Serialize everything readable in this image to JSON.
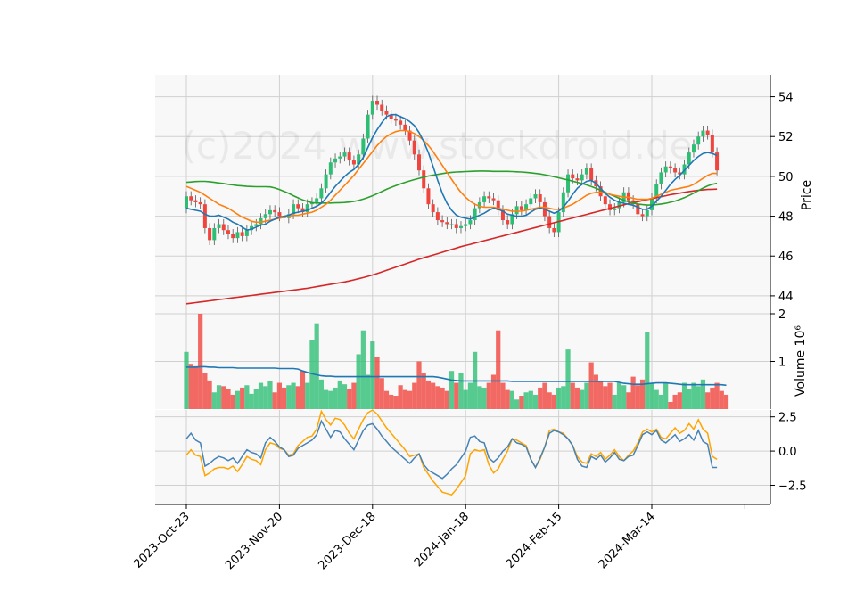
{
  "watermark": "(c)2024 www.stockdroid.de",
  "colors": {
    "up": "#2dbe74",
    "down": "#f0453f",
    "ma_short": "#1f77b4",
    "ma_mid": "#ff7f0e",
    "ma_long": "#2ca02c",
    "ma_200": "#d62728",
    "volume_avg": "#1f77b4",
    "osc_fast": "#4682b4",
    "osc_slow": "#ffa500"
  },
  "chart_data": {
    "type": "candlestick",
    "x_tick_labels": [
      "2023-Oct-23",
      "2023-Nov-20",
      "2023-Dec-18",
      "2024-Jan-18",
      "2024-Feb-15",
      "2024-Mar-14"
    ],
    "x_tick_index": [
      0,
      20,
      40,
      60,
      80,
      100
    ],
    "price_panel": {
      "ylabel": "Price",
      "ylim": [
        43.1,
        55.1
      ],
      "yticks": [
        44,
        46,
        48,
        50,
        52,
        54
      ],
      "close": [
        49.0,
        48.8,
        48.7,
        48.6,
        47.4,
        46.8,
        47.4,
        47.6,
        47.3,
        47.1,
        46.9,
        47.2,
        47.0,
        47.3,
        47.5,
        47.6,
        47.9,
        48.1,
        48.3,
        48.2,
        48.0,
        47.9,
        48.1,
        48.6,
        48.4,
        48.2,
        48.6,
        48.7,
        48.9,
        49.4,
        50.1,
        50.7,
        50.9,
        51.0,
        51.2,
        50.8,
        50.6,
        51.1,
        51.9,
        53.1,
        53.8,
        53.6,
        53.3,
        53.1,
        52.9,
        52.8,
        52.6,
        52.3,
        51.8,
        51.1,
        50.3,
        49.4,
        48.6,
        48.2,
        47.8,
        47.7,
        47.6,
        47.6,
        47.4,
        47.5,
        47.6,
        47.8,
        48.4,
        48.7,
        49.0,
        48.9,
        48.8,
        48.3,
        47.8,
        47.6,
        48.1,
        48.5,
        48.3,
        48.6,
        48.9,
        49.1,
        48.7,
        48.0,
        47.4,
        47.2,
        48.2,
        49.2,
        50.1,
        49.9,
        49.8,
        50.1,
        50.4,
        49.8,
        49.5,
        49.0,
        48.6,
        48.3,
        48.4,
        48.7,
        49.2,
        48.8,
        48.6,
        48.1,
        48.0,
        48.3,
        48.9,
        49.6,
        50.2,
        50.5,
        50.4,
        50.2,
        50.1,
        50.6,
        51.2,
        51.6,
        52.0,
        52.3,
        52.1,
        51.2,
        50.3
      ],
      "ma_short": [
        48.4,
        48.35,
        48.3,
        48.25,
        48.1,
        48.0,
        48.0,
        48.05,
        47.95,
        47.85,
        47.7,
        47.6,
        47.45,
        47.3,
        47.35,
        47.45,
        47.55,
        47.6,
        47.75,
        47.85,
        47.95,
        48.0,
        48.05,
        48.15,
        48.2,
        48.25,
        48.3,
        48.4,
        48.5,
        48.65,
        48.9,
        49.2,
        49.5,
        49.75,
        50.0,
        50.2,
        50.35,
        50.6,
        50.95,
        51.45,
        51.95,
        52.35,
        52.7,
        53.0,
        53.1,
        53.1,
        53.0,
        52.9,
        52.75,
        52.55,
        52.2,
        51.75,
        51.2,
        50.5,
        49.8,
        49.15,
        48.65,
        48.3,
        48.05,
        47.95,
        47.9,
        47.85,
        47.95,
        48.05,
        48.15,
        48.3,
        48.4,
        48.35,
        48.25,
        48.1,
        48.05,
        48.0,
        48.0,
        48.05,
        48.2,
        48.35,
        48.4,
        48.35,
        48.25,
        48.15,
        48.25,
        48.45,
        48.75,
        49.1,
        49.4,
        49.6,
        49.75,
        49.8,
        49.65,
        49.4,
        49.15,
        48.95,
        48.8,
        48.7,
        48.65,
        48.6,
        48.55,
        48.45,
        48.35,
        48.35,
        48.5,
        48.75,
        49.0,
        49.3,
        49.6,
        49.85,
        50.05,
        50.3,
        50.55,
        50.8,
        51.0,
        51.15,
        51.2,
        51.15,
        51.05
      ],
      "ma_mid": [
        49.5,
        49.4,
        49.3,
        49.2,
        49.05,
        48.9,
        48.75,
        48.6,
        48.5,
        48.4,
        48.25,
        48.1,
        47.95,
        47.85,
        47.75,
        47.7,
        47.7,
        47.75,
        47.8,
        47.85,
        47.9,
        47.95,
        48.0,
        48.05,
        48.05,
        48.1,
        48.15,
        48.2,
        48.3,
        48.45,
        48.6,
        48.8,
        49.05,
        49.3,
        49.55,
        49.8,
        50.05,
        50.35,
        50.65,
        50.95,
        51.25,
        51.55,
        51.8,
        52.0,
        52.15,
        52.25,
        52.3,
        52.3,
        52.25,
        52.15,
        52.0,
        51.8,
        51.55,
        51.25,
        50.9,
        50.55,
        50.2,
        49.85,
        49.5,
        49.2,
        48.95,
        48.75,
        48.6,
        48.5,
        48.45,
        48.45,
        48.45,
        48.4,
        48.35,
        48.3,
        48.25,
        48.25,
        48.25,
        48.3,
        48.35,
        48.4,
        48.45,
        48.45,
        48.4,
        48.35,
        48.35,
        48.4,
        48.5,
        48.6,
        48.75,
        48.9,
        49.05,
        49.15,
        49.2,
        49.2,
        49.15,
        49.1,
        49.05,
        49.0,
        48.95,
        48.95,
        48.9,
        48.85,
        48.85,
        48.85,
        48.9,
        49.0,
        49.1,
        49.2,
        49.3,
        49.35,
        49.4,
        49.45,
        49.5,
        49.6,
        49.75,
        49.9,
        50.05,
        50.15,
        50.15
      ],
      "ma_long": [
        49.7,
        49.72,
        49.74,
        49.75,
        49.75,
        49.73,
        49.7,
        49.67,
        49.64,
        49.6,
        49.57,
        49.54,
        49.52,
        49.5,
        49.49,
        49.48,
        49.48,
        49.48,
        49.47,
        49.42,
        49.34,
        49.25,
        49.15,
        49.03,
        48.92,
        48.82,
        48.74,
        48.68,
        48.66,
        48.66,
        48.66,
        48.66,
        48.67,
        48.68,
        48.69,
        48.71,
        48.74,
        48.79,
        48.86,
        48.94,
        49.03,
        49.13,
        49.24,
        49.35,
        49.45,
        49.54,
        49.62,
        49.7,
        49.77,
        49.84,
        49.9,
        49.96,
        50.02,
        50.06,
        50.1,
        50.14,
        50.18,
        50.2,
        50.22,
        50.23,
        50.24,
        50.25,
        50.26,
        50.27,
        50.27,
        50.26,
        50.25,
        50.25,
        50.25,
        50.25,
        50.24,
        50.23,
        50.22,
        50.2,
        50.18,
        50.15,
        50.12,
        50.08,
        50.03,
        49.98,
        49.93,
        49.87,
        49.82,
        49.76,
        49.7,
        49.64,
        49.57,
        49.49,
        49.4,
        49.3,
        49.2,
        49.1,
        49.0,
        48.9,
        48.8,
        48.72,
        48.66,
        48.61,
        48.58,
        48.56,
        48.56,
        48.58,
        48.61,
        48.65,
        48.7,
        48.76,
        48.84,
        48.93,
        49.04,
        49.16,
        49.29,
        49.41,
        49.52,
        49.6,
        49.65
      ],
      "ma_200": [
        43.6,
        43.63,
        43.66,
        43.69,
        43.72,
        43.75,
        43.78,
        43.81,
        43.84,
        43.87,
        43.9,
        43.93,
        43.96,
        43.99,
        44.02,
        44.05,
        44.08,
        44.11,
        44.14,
        44.17,
        44.2,
        44.23,
        44.26,
        44.29,
        44.32,
        44.35,
        44.38,
        44.42,
        44.46,
        44.5,
        44.54,
        44.58,
        44.62,
        44.66,
        44.7,
        44.75,
        44.8,
        44.86,
        44.92,
        44.98,
        45.05,
        45.12,
        45.2,
        45.28,
        45.36,
        45.44,
        45.52,
        45.6,
        45.68,
        45.76,
        45.84,
        45.91,
        45.98,
        46.05,
        46.12,
        46.19,
        46.26,
        46.33,
        46.4,
        46.47,
        46.53,
        46.59,
        46.65,
        46.71,
        46.77,
        46.83,
        46.89,
        46.95,
        47.01,
        47.07,
        47.13,
        47.19,
        47.25,
        47.31,
        47.37,
        47.43,
        47.49,
        47.55,
        47.61,
        47.67,
        47.73,
        47.79,
        47.85,
        47.91,
        47.97,
        48.03,
        48.09,
        48.15,
        48.21,
        48.27,
        48.33,
        48.39,
        48.45,
        48.51,
        48.57,
        48.63,
        48.68,
        48.73,
        48.78,
        48.83,
        48.88,
        48.93,
        48.98,
        49.03,
        49.08,
        49.12,
        49.16,
        49.2,
        49.24,
        49.27,
        49.3,
        49.32,
        49.34,
        49.35,
        49.36
      ]
    },
    "volume_panel": {
      "ylabel": "Volume  10⁶",
      "ylim": [
        0,
        2.0
      ],
      "yticks": [
        1,
        2
      ],
      "values": [
        1.2,
        0.95,
        0.9,
        2.0,
        0.75,
        0.6,
        0.35,
        0.5,
        0.48,
        0.42,
        0.3,
        0.38,
        0.45,
        0.5,
        0.32,
        0.42,
        0.55,
        0.48,
        0.58,
        0.35,
        0.55,
        0.45,
        0.5,
        0.55,
        0.48,
        0.8,
        0.55,
        1.45,
        1.8,
        0.62,
        0.4,
        0.38,
        0.45,
        0.6,
        0.52,
        0.42,
        0.55,
        1.15,
        1.65,
        0.72,
        1.42,
        1.1,
        0.65,
        0.38,
        0.3,
        0.28,
        0.5,
        0.4,
        0.38,
        0.55,
        1.0,
        0.75,
        0.6,
        0.55,
        0.48,
        0.45,
        0.38,
        0.8,
        0.55,
        0.75,
        0.4,
        0.55,
        1.2,
        0.48,
        0.45,
        0.55,
        0.72,
        1.65,
        0.55,
        0.4,
        0.38,
        0.2,
        0.28,
        0.35,
        0.38,
        0.3,
        0.45,
        0.55,
        0.35,
        0.3,
        0.45,
        0.48,
        1.25,
        0.55,
        0.45,
        0.4,
        0.55,
        0.98,
        0.72,
        0.6,
        0.48,
        0.55,
        0.3,
        0.55,
        0.5,
        0.35,
        0.68,
        0.5,
        0.62,
        1.62,
        0.55,
        0.4,
        0.3,
        0.55,
        0.15,
        0.3,
        0.35,
        0.55,
        0.42,
        0.55,
        0.48,
        0.62,
        0.35,
        0.45,
        0.55,
        0.38,
        0.3
      ],
      "avg": [
        0.88,
        0.88,
        0.88,
        0.89,
        0.89,
        0.88,
        0.88,
        0.87,
        0.87,
        0.87,
        0.87,
        0.86,
        0.86,
        0.86,
        0.86,
        0.86,
        0.86,
        0.86,
        0.86,
        0.86,
        0.85,
        0.85,
        0.85,
        0.85,
        0.84,
        0.8,
        0.77,
        0.74,
        0.72,
        0.7,
        0.69,
        0.69,
        0.68,
        0.68,
        0.68,
        0.68,
        0.68,
        0.68,
        0.68,
        0.68,
        0.68,
        0.68,
        0.68,
        0.68,
        0.68,
        0.68,
        0.68,
        0.68,
        0.68,
        0.68,
        0.68,
        0.68,
        0.68,
        0.68,
        0.67,
        0.65,
        0.63,
        0.61,
        0.6,
        0.59,
        0.59,
        0.59,
        0.59,
        0.59,
        0.59,
        0.59,
        0.59,
        0.59,
        0.59,
        0.59,
        0.58,
        0.58,
        0.58,
        0.58,
        0.58,
        0.58,
        0.58,
        0.58,
        0.58,
        0.58,
        0.58,
        0.58,
        0.58,
        0.58,
        0.58,
        0.58,
        0.58,
        0.58,
        0.58,
        0.58,
        0.58,
        0.58,
        0.58,
        0.56,
        0.54,
        0.53,
        0.52,
        0.52,
        0.52,
        0.53,
        0.54,
        0.55,
        0.55,
        0.55,
        0.54,
        0.53,
        0.52,
        0.51,
        0.51,
        0.51,
        0.51,
        0.51,
        0.51,
        0.51,
        0.51,
        0.51,
        0.5
      ]
    },
    "oscillator_panel": {
      "ylim": [
        -3.9,
        3.0
      ],
      "yticks": [
        2.5,
        0.0,
        -2.5
      ],
      "ytick_labels": [
        "2.5",
        "0.0",
        "−2.5"
      ],
      "fast": [
        0.9,
        1.3,
        0.8,
        0.6,
        -1.1,
        -0.9,
        -0.6,
        -0.4,
        -0.5,
        -0.7,
        -0.5,
        -0.9,
        -0.4,
        0.1,
        -0.1,
        -0.2,
        -0.5,
        0.6,
        1.0,
        0.7,
        0.3,
        0.1,
        -0.4,
        -0.3,
        0.2,
        0.4,
        0.6,
        0.8,
        1.2,
        2.2,
        1.6,
        1.0,
        1.5,
        1.4,
        0.9,
        0.5,
        0.1,
        0.8,
        1.5,
        1.9,
        2.0,
        1.6,
        1.1,
        0.7,
        0.3,
        0.0,
        -0.3,
        -0.6,
        -0.9,
        -0.5,
        -0.2,
        -1.0,
        -1.4,
        -1.6,
        -1.8,
        -2.0,
        -1.7,
        -1.3,
        -1.0,
        -0.5,
        0.0,
        1.0,
        1.1,
        0.7,
        0.6,
        -0.5,
        -0.8,
        -0.5,
        0.0,
        0.3,
        0.9,
        0.6,
        0.5,
        0.3,
        -0.6,
        -1.2,
        -0.5,
        0.3,
        1.3,
        1.5,
        1.4,
        1.2,
        0.9,
        0.4,
        -0.6,
        -1.1,
        -1.2,
        -0.4,
        -0.6,
        -0.3,
        -0.8,
        -0.5,
        -0.1,
        -0.6,
        -0.7,
        -0.4,
        -0.3,
        0.4,
        1.2,
        1.4,
        1.2,
        1.5,
        0.8,
        0.6,
        0.9,
        1.2,
        0.7,
        0.9,
        1.2,
        0.8,
        1.5,
        0.7,
        0.5,
        -1.2,
        -1.2
      ],
      "slow": [
        -0.3,
        0.1,
        -0.3,
        -0.4,
        -1.8,
        -1.6,
        -1.3,
        -1.2,
        -1.2,
        -1.3,
        -1.1,
        -1.5,
        -1.0,
        -0.4,
        -0.6,
        -0.7,
        -1.0,
        0.1,
        0.6,
        0.5,
        0.2,
        0.1,
        -0.3,
        -0.2,
        0.4,
        0.7,
        1.0,
        1.1,
        1.6,
        2.9,
        2.3,
        1.9,
        2.4,
        2.3,
        1.9,
        1.3,
        0.9,
        1.6,
        2.3,
        2.8,
        3.0,
        2.7,
        2.2,
        1.7,
        1.3,
        0.9,
        0.5,
        0.1,
        -0.4,
        -0.3,
        -0.2,
        -1.2,
        -1.7,
        -2.2,
        -2.6,
        -3.0,
        -3.1,
        -3.2,
        -2.8,
        -2.3,
        -1.8,
        -0.2,
        0.1,
        0.0,
        0.1,
        -1.0,
        -1.6,
        -1.3,
        -0.6,
        0.0,
        0.9,
        0.8,
        0.6,
        0.4,
        -0.6,
        -1.2,
        -0.6,
        0.3,
        1.5,
        1.6,
        1.4,
        1.3,
        0.9,
        0.4,
        -0.4,
        -0.8,
        -0.9,
        -0.2,
        -0.4,
        -0.1,
        -0.6,
        -0.3,
        0.1,
        -0.4,
        -0.7,
        -0.3,
        0.0,
        0.6,
        1.4,
        1.6,
        1.4,
        1.6,
        1.0,
        0.9,
        1.3,
        1.7,
        1.3,
        1.5,
        2.0,
        1.6,
        2.3,
        1.6,
        1.3,
        -0.4,
        -0.6
      ]
    }
  }
}
